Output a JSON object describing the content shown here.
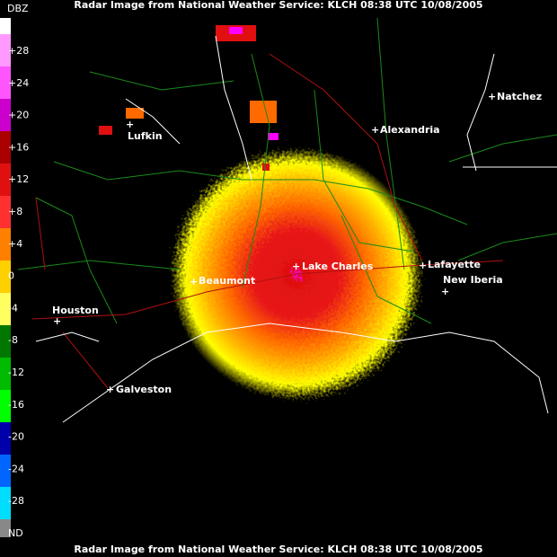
{
  "header": {
    "title": "Radar Image from National Weather Service: KLCH   08:38 UTC 10/08/2005"
  },
  "footer": {
    "title": "Radar Image from National Weather Service: KLCH   08:38 UTC 10/08/2005"
  },
  "legend": {
    "unit": "DBZ",
    "labels": [
      "+28",
      "+24",
      "+20",
      "+16",
      "+12",
      "+8",
      "+4",
      "0",
      "-4",
      "-8",
      "-12",
      "-16",
      "-20",
      "-24",
      "-28",
      "ND"
    ]
  },
  "cities": [
    "Natchez",
    "Lufkin",
    "Alexandria",
    "Lake Charles",
    "Lafayette",
    "Beaumont",
    "New Iberia",
    "Houston",
    "Galveston"
  ]
}
